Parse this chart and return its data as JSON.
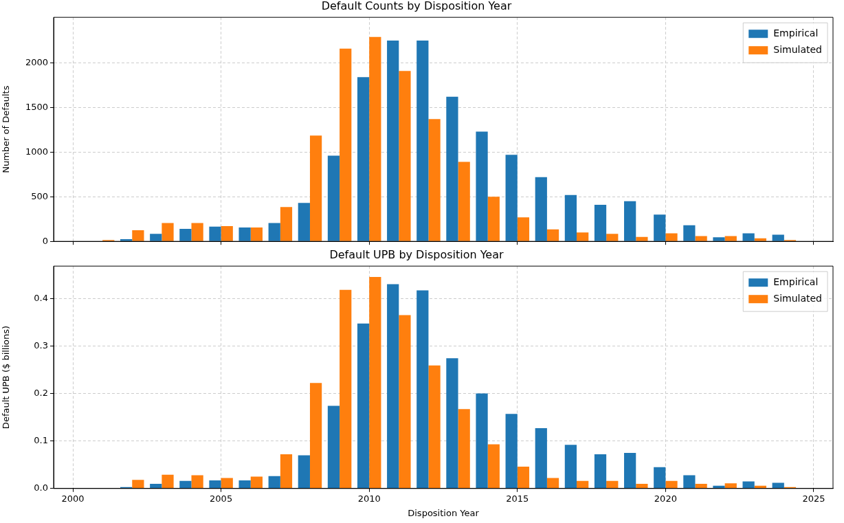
{
  "chart_data": [
    {
      "type": "bar",
      "title": "Default Counts by Disposition Year",
      "ylabel": "Number of Defaults",
      "x": [
        2001,
        2002,
        2003,
        2004,
        2005,
        2006,
        2007,
        2008,
        2009,
        2010,
        2011,
        2012,
        2013,
        2014,
        2015,
        2016,
        2017,
        2018,
        2019,
        2020,
        2021,
        2022,
        2023,
        2024
      ],
      "series": [
        {
          "name": "Empirical",
          "color": "#1f77b4",
          "values": [
            0,
            25,
            85,
            140,
            165,
            155,
            205,
            430,
            960,
            1840,
            2250,
            2250,
            1620,
            1230,
            970,
            720,
            520,
            410,
            450,
            300,
            180,
            45,
            90,
            75
          ]
        },
        {
          "name": "Simulated",
          "color": "#ff7f0e",
          "values": [
            15,
            125,
            205,
            205,
            170,
            155,
            385,
            1185,
            2160,
            2290,
            1910,
            1370,
            890,
            500,
            270,
            135,
            100,
            85,
            50,
            90,
            60,
            60,
            35,
            15
          ]
        }
      ],
      "xlim": [
        1999.35,
        2025.65
      ],
      "xticks": [
        2000,
        2005,
        2010,
        2015,
        2020,
        2025
      ],
      "ylim": [
        0,
        2510
      ],
      "yticks": [
        0,
        500,
        1000,
        1500,
        2000
      ],
      "grid": true,
      "legend": "top right",
      "tick_labels": "y"
    },
    {
      "type": "bar",
      "title": "Default UPB by Disposition Year",
      "xlabel": "Disposition Year",
      "ylabel": "Default UPB ($ billions)",
      "x": [
        2001,
        2002,
        2003,
        2004,
        2005,
        2006,
        2007,
        2008,
        2009,
        2010,
        2011,
        2012,
        2013,
        2014,
        2015,
        2016,
        2017,
        2018,
        2019,
        2020,
        2021,
        2022,
        2023,
        2024
      ],
      "series": [
        {
          "name": "Empirical",
          "color": "#1f77b4",
          "values": [
            0,
            0.003,
            0.01,
            0.016,
            0.017,
            0.017,
            0.026,
            0.07,
            0.174,
            0.347,
            0.43,
            0.417,
            0.274,
            0.2,
            0.157,
            0.127,
            0.092,
            0.072,
            0.075,
            0.045,
            0.028,
            0.006,
            0.015,
            0.012
          ]
        },
        {
          "name": "Simulated",
          "color": "#ff7f0e",
          "values": [
            null,
            0.018,
            0.029,
            0.028,
            0.022,
            0.025,
            0.072,
            0.222,
            0.418,
            0.445,
            0.365,
            0.259,
            0.167,
            0.093,
            0.046,
            0.022,
            0.016,
            0.016,
            0.01,
            0.016,
            0.01,
            0.011,
            0.006,
            0.003
          ]
        }
      ],
      "xlim": [
        1999.35,
        2025.65
      ],
      "xticks": [
        2000,
        2005,
        2010,
        2015,
        2020,
        2025
      ],
      "ylim": [
        0,
        0.468
      ],
      "yticks": [
        {
          "value": 0,
          "label": "0.0"
        },
        0.1,
        0.2,
        0.3,
        0.4
      ],
      "grid": true,
      "legend": "top right"
    }
  ]
}
